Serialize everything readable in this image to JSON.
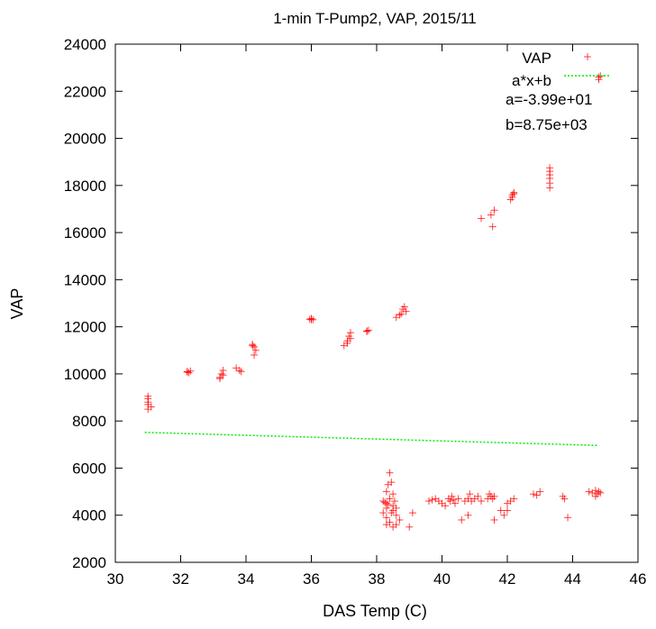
{
  "chart_data": {
    "type": "scatter",
    "title": "1-min T-Pump2, VAP, 2015/11",
    "xlabel": "DAS Temp (C)",
    "ylabel": "VAP",
    "xlim": [
      30,
      46
    ],
    "ylim": [
      2000,
      24000
    ],
    "xticks": [
      "30",
      "32",
      "34",
      "36",
      "38",
      "40",
      "42",
      "44",
      "46"
    ],
    "yticks": [
      "2000",
      "4000",
      "6000",
      "8000",
      "10000",
      "12000",
      "14000",
      "16000",
      "18000",
      "20000",
      "22000",
      "24000"
    ],
    "legend_position": "top-right",
    "grid": false,
    "series": [
      {
        "name": "VAP",
        "kind": "points",
        "marker": "plus",
        "color": "#ff0000",
        "points": [
          [
            31.0,
            8500
          ],
          [
            31.0,
            8700
          ],
          [
            31.0,
            8800
          ],
          [
            31.0,
            8950
          ],
          [
            31.1,
            8600
          ],
          [
            31.0,
            9050
          ],
          [
            32.2,
            10100
          ],
          [
            32.25,
            10050
          ],
          [
            32.3,
            10120
          ],
          [
            32.2,
            10080
          ],
          [
            33.2,
            9850
          ],
          [
            33.25,
            10000
          ],
          [
            33.3,
            10150
          ],
          [
            33.2,
            9800
          ],
          [
            33.3,
            9950
          ],
          [
            33.7,
            10250
          ],
          [
            33.8,
            10150
          ],
          [
            33.85,
            10100
          ],
          [
            34.2,
            11200
          ],
          [
            34.25,
            11150
          ],
          [
            34.3,
            11000
          ],
          [
            34.25,
            10800
          ],
          [
            34.2,
            11250
          ],
          [
            36.0,
            12300
          ],
          [
            36.0,
            12350
          ],
          [
            36.05,
            12300
          ],
          [
            35.95,
            12320
          ],
          [
            37.0,
            11200
          ],
          [
            37.1,
            11400
          ],
          [
            37.15,
            11600
          ],
          [
            37.2,
            11750
          ],
          [
            37.1,
            11300
          ],
          [
            37.2,
            11500
          ],
          [
            37.7,
            11800
          ],
          [
            37.75,
            11850
          ],
          [
            37.7,
            11820
          ],
          [
            38.6,
            12400
          ],
          [
            38.7,
            12500
          ],
          [
            38.75,
            12550
          ],
          [
            38.8,
            12750
          ],
          [
            38.9,
            12650
          ],
          [
            38.85,
            12850
          ],
          [
            41.2,
            16600
          ],
          [
            41.5,
            16750
          ],
          [
            41.55,
            16250
          ],
          [
            41.6,
            16950
          ],
          [
            42.1,
            17400
          ],
          [
            42.15,
            17600
          ],
          [
            42.2,
            17700
          ],
          [
            42.2,
            17650
          ],
          [
            42.15,
            17500
          ],
          [
            43.3,
            17900
          ],
          [
            43.3,
            18100
          ],
          [
            43.3,
            18300
          ],
          [
            43.3,
            18450
          ],
          [
            43.3,
            18600
          ],
          [
            43.3,
            18750
          ],
          [
            44.8,
            22500
          ],
          [
            44.8,
            22600
          ],
          [
            44.85,
            22650
          ],
          [
            38.2,
            4600
          ],
          [
            38.3,
            4500
          ],
          [
            38.4,
            4700
          ],
          [
            38.3,
            5000
          ],
          [
            38.35,
            5300
          ],
          [
            38.4,
            5800
          ],
          [
            38.45,
            5400
          ],
          [
            38.5,
            4900
          ],
          [
            38.5,
            4400
          ],
          [
            38.3,
            4300
          ],
          [
            38.2,
            4100
          ],
          [
            38.3,
            3900
          ],
          [
            38.4,
            3700
          ],
          [
            38.3,
            3600
          ],
          [
            38.5,
            4200
          ],
          [
            38.6,
            4000
          ],
          [
            38.6,
            3600
          ],
          [
            38.7,
            3800
          ],
          [
            38.55,
            4600
          ],
          [
            38.45,
            4100
          ],
          [
            38.35,
            4450
          ],
          [
            38.25,
            4550
          ],
          [
            38.5,
            3500
          ],
          [
            38.6,
            4300
          ],
          [
            39.0,
            3500
          ],
          [
            39.1,
            4100
          ],
          [
            39.6,
            4600
          ],
          [
            39.7,
            4650
          ],
          [
            39.8,
            4700
          ],
          [
            39.9,
            4600
          ],
          [
            40.0,
            4500
          ],
          [
            40.1,
            4400
          ],
          [
            40.2,
            4700
          ],
          [
            40.3,
            4800
          ],
          [
            40.25,
            4600
          ],
          [
            40.35,
            4650
          ],
          [
            40.4,
            4500
          ],
          [
            40.5,
            4700
          ],
          [
            40.6,
            3800
          ],
          [
            40.7,
            4600
          ],
          [
            40.8,
            4700
          ],
          [
            40.85,
            4900
          ],
          [
            40.9,
            4600
          ],
          [
            40.8,
            4000
          ],
          [
            41.0,
            4700
          ],
          [
            41.1,
            4800
          ],
          [
            41.2,
            4600
          ],
          [
            41.4,
            4700
          ],
          [
            41.5,
            4800
          ],
          [
            41.45,
            4900
          ],
          [
            41.6,
            4800
          ],
          [
            41.55,
            4700
          ],
          [
            41.6,
            3800
          ],
          [
            41.8,
            4200
          ],
          [
            41.9,
            4000
          ],
          [
            42.0,
            4500
          ],
          [
            42.1,
            4600
          ],
          [
            42.2,
            4700
          ],
          [
            42.0,
            4200
          ],
          [
            42.8,
            4900
          ],
          [
            42.9,
            4850
          ],
          [
            43.0,
            5000
          ],
          [
            43.7,
            4800
          ],
          [
            43.75,
            4700
          ],
          [
            43.85,
            3900
          ],
          [
            44.5,
            5000
          ],
          [
            44.6,
            4950
          ],
          [
            44.7,
            5050
          ],
          [
            44.75,
            4900
          ],
          [
            44.8,
            5000
          ],
          [
            44.85,
            4950
          ],
          [
            44.7,
            4800
          ]
        ]
      },
      {
        "name": "a*x+b",
        "kind": "line",
        "color": "#00ee00",
        "dash": "dotted",
        "a": -39.9,
        "b": 8750,
        "x_range": [
          30.9,
          44.8
        ]
      }
    ],
    "annotations": [
      "a=-3.99e+01",
      "b=8.75e+03"
    ]
  }
}
